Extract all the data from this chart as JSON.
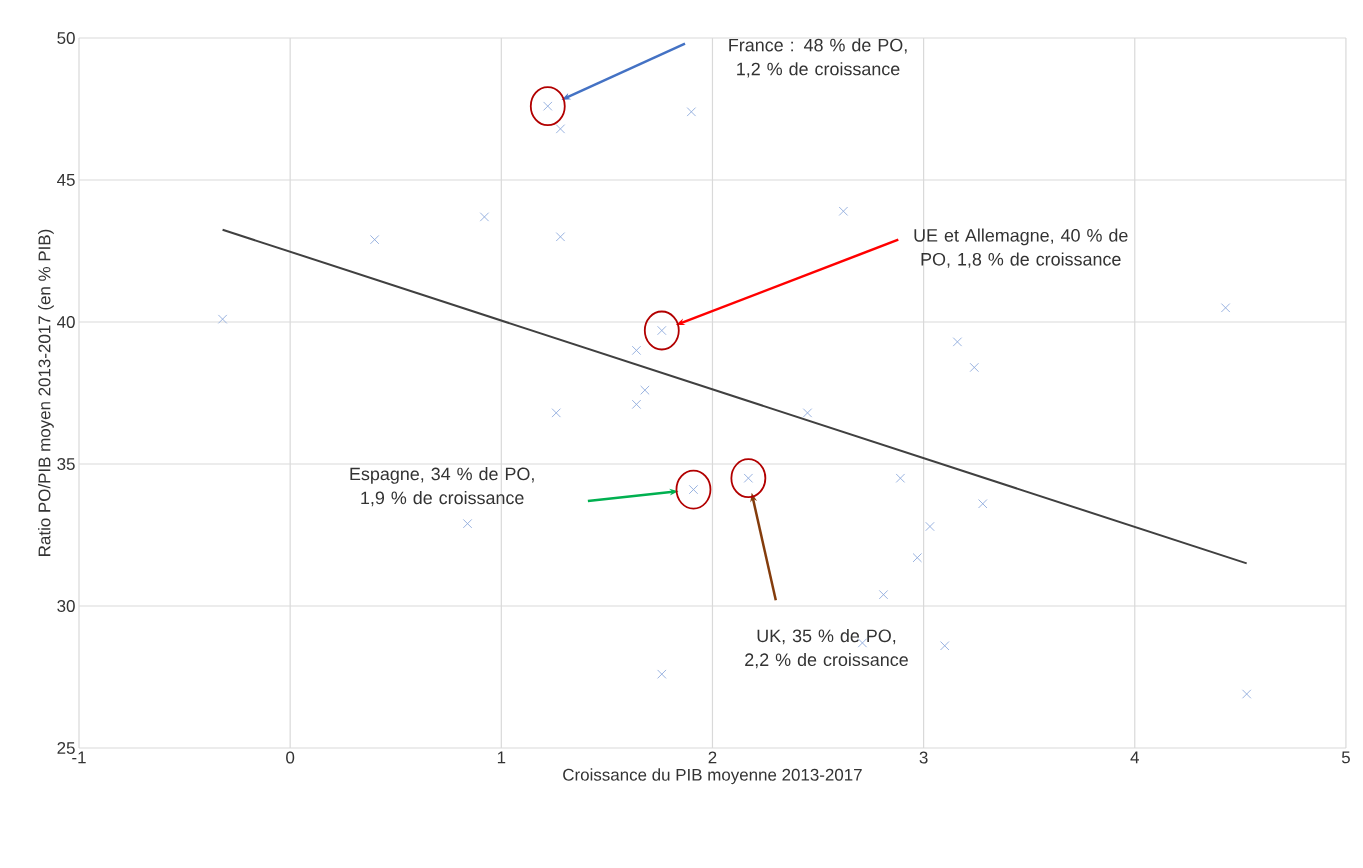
{
  "chart_data": {
    "type": "scatter",
    "xlabel": "Croissance du PIB moyenne 2013-2017",
    "ylabel": "Ratio PO/PIB moyen 2013-2017 (en % PIB)",
    "xlim": [
      -1,
      5
    ],
    "ylim": [
      25,
      50
    ],
    "xticks": [
      -1,
      0,
      1,
      2,
      3,
      4,
      5
    ],
    "yticks": [
      25,
      30,
      35,
      40,
      45,
      50
    ],
    "grid": true,
    "marker": "cross",
    "series": [
      {
        "color": "#8faadc",
        "x": [
          -0.32,
          0.4,
          0.92,
          1.22,
          1.28,
          1.28,
          1.9,
          2.62,
          1.76,
          1.64,
          3.16,
          3.24,
          1.64,
          1.68,
          1.26,
          2.45,
          1.91,
          2.17,
          0.84,
          2.89,
          3.28,
          3.03,
          2.97,
          2.81,
          2.71,
          3.1,
          1.76,
          4.43,
          4.53
        ],
        "values": [
          40.1,
          42.9,
          43.7,
          47.6,
          46.8,
          43.0,
          47.4,
          43.9,
          39.7,
          39.0,
          39.3,
          38.4,
          37.1,
          37.6,
          36.8,
          36.8,
          34.1,
          34.5,
          32.9,
          34.5,
          33.6,
          32.8,
          31.7,
          30.4,
          28.7,
          28.6,
          27.6,
          40.5,
          26.9
        ]
      },
      {
        "type": "line",
        "color": "#404040",
        "marker": "none",
        "x": [
          -0.32,
          4.53
        ],
        "values": [
          43.25,
          31.5
        ]
      }
    ],
    "annotations": [
      "France : 48 % de PO, 1,2 % de croissance",
      "UE et Allemagne, 40 % de PO, 1,8 % de croissance",
      "Espagne, 34 % de PO, 1,9 % de croissance",
      "UK, 35 % de PO, 2,2 % de croissance"
    ]
  }
}
